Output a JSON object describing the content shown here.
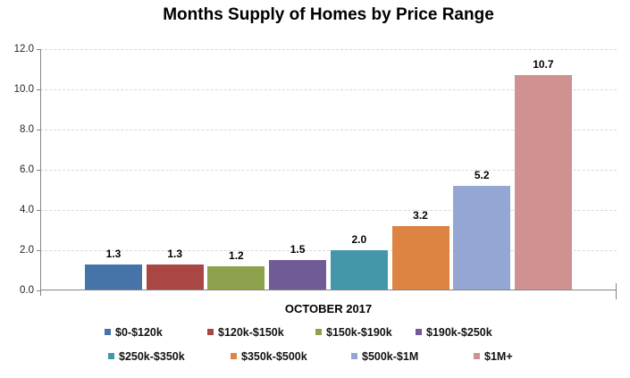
{
  "title": "Months Supply of Homes by Price Range",
  "chart_data": {
    "type": "bar",
    "title": "Months Supply of Homes by Price Range",
    "xlabel": "OCTOBER 2017",
    "ylabel": "",
    "categories": [
      "$0-$120k",
      "$120k-$150k",
      "$150k-$190k",
      "$190k-$250k",
      "$250k-$350k",
      "$350k-$500k",
      "$500k-$1M",
      "$1M+"
    ],
    "values": [
      1.3,
      1.3,
      1.2,
      1.5,
      2.0,
      3.2,
      5.2,
      10.7
    ],
    "data_labels": [
      "1.3",
      "1.3",
      "1.2",
      "1.5",
      "2.0",
      "3.2",
      "5.2",
      "10.7"
    ],
    "bar_colors": [
      "#4673a8",
      "#a94744",
      "#8da14d",
      "#6f5b96",
      "#4497ab",
      "#dd8443",
      "#94a6d4",
      "#d09290"
    ],
    "ylim": [
      0,
      12
    ],
    "ytick_step": 2,
    "ytick_labels": [
      "12.0",
      "10.0",
      "8.0",
      "6.0",
      "4.0",
      "2.0",
      "0.0"
    ],
    "grid": "horizontal dashed",
    "gridline_color": "#d9d9d9",
    "axis_line_color": "#848484",
    "legend_position": "bottom two rows",
    "legend_rows": [
      [
        "$0-$120k",
        "$120k-$150k",
        "$150k-$190k",
        "$190k-$250k"
      ],
      [
        "$250k-$350k",
        "$350k-$500k",
        "$500k-$1M",
        "$1M+"
      ]
    ]
  }
}
